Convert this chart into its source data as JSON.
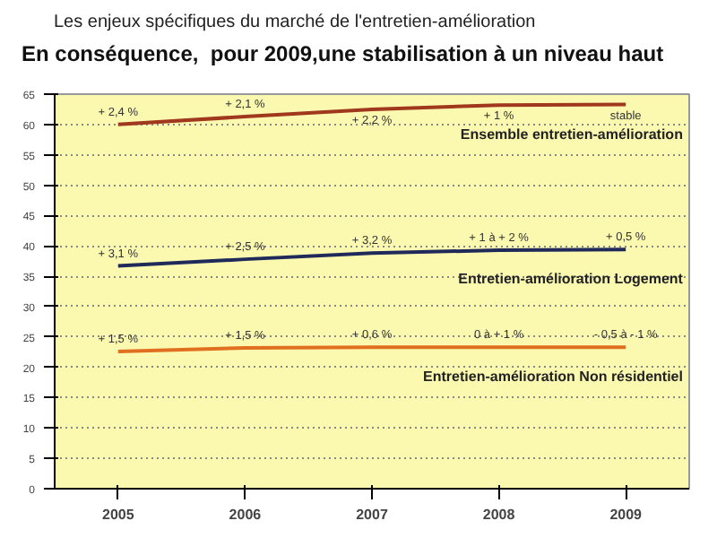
{
  "chart_data": {
    "type": "line",
    "title": "Les enjeux spécifiques du marché de l'entretien-amélioration",
    "subtitle": "En conséquence,  pour 2009,une stabilisation à un niveau haut",
    "categories": [
      "2005",
      "2006",
      "2007",
      "2008",
      "2009"
    ],
    "series": [
      {
        "name": "Ensemble entretien-amélioration",
        "color": "#a0381e",
        "values": [
          60,
          61.3,
          62.5,
          63.2,
          63.3
        ]
      },
      {
        "name": "Entretien-amélioration Logement",
        "color": "#1f2a5a",
        "values": [
          36.7,
          37.8,
          38.8,
          39.3,
          39.4
        ]
      },
      {
        "name": "Entretien-amélioration Non résidentiel",
        "color": "#e07020",
        "values": [
          22.6,
          23.2,
          23.3,
          23.3,
          23.3
        ]
      }
    ],
    "annotations": [
      {
        "text": "+ 2,4 %",
        "x": "2005",
        "y": 60
      },
      {
        "text": "+ 2,1 %",
        "x": "2006",
        "y": 61.3
      },
      {
        "text": "+ 2,2 %",
        "x": "2007",
        "y": 62.5
      },
      {
        "text": "+ 1 %",
        "x": "2008",
        "y": 63.2
      },
      {
        "text": "stable",
        "x": "2009",
        "y": 63.3
      },
      {
        "text": "+ 3,1 %",
        "x": "2005",
        "y": 36.7
      },
      {
        "text": "+ 2,5 %",
        "x": "2006",
        "y": 37.8
      },
      {
        "text": "+ 3,2 %",
        "x": "2007",
        "y": 38.8
      },
      {
        "text": "+ 1 à + 2 %",
        "x": "2008",
        "y": 39.3
      },
      {
        "text": "+ 0,5 %",
        "x": "2009",
        "y": 39.4
      },
      {
        "text": "+ 1,5 %",
        "x": "2005",
        "y": 22.6
      },
      {
        "text": "+ 1,5 %",
        "x": "2006",
        "y": 23.2
      },
      {
        "text": "+ 0,6 %",
        "x": "2007",
        "y": 23.3
      },
      {
        "text": "0 à + 1 %",
        "x": "2008",
        "y": 23.3
      },
      {
        "text": "- 0,5 à - 1 %",
        "x": "2009",
        "y": 23.3
      }
    ],
    "ylim": [
      0,
      65
    ],
    "yticks": [
      0,
      5,
      10,
      15,
      20,
      25,
      30,
      35,
      40,
      45,
      50,
      55,
      60,
      65
    ],
    "grid": "y"
  }
}
